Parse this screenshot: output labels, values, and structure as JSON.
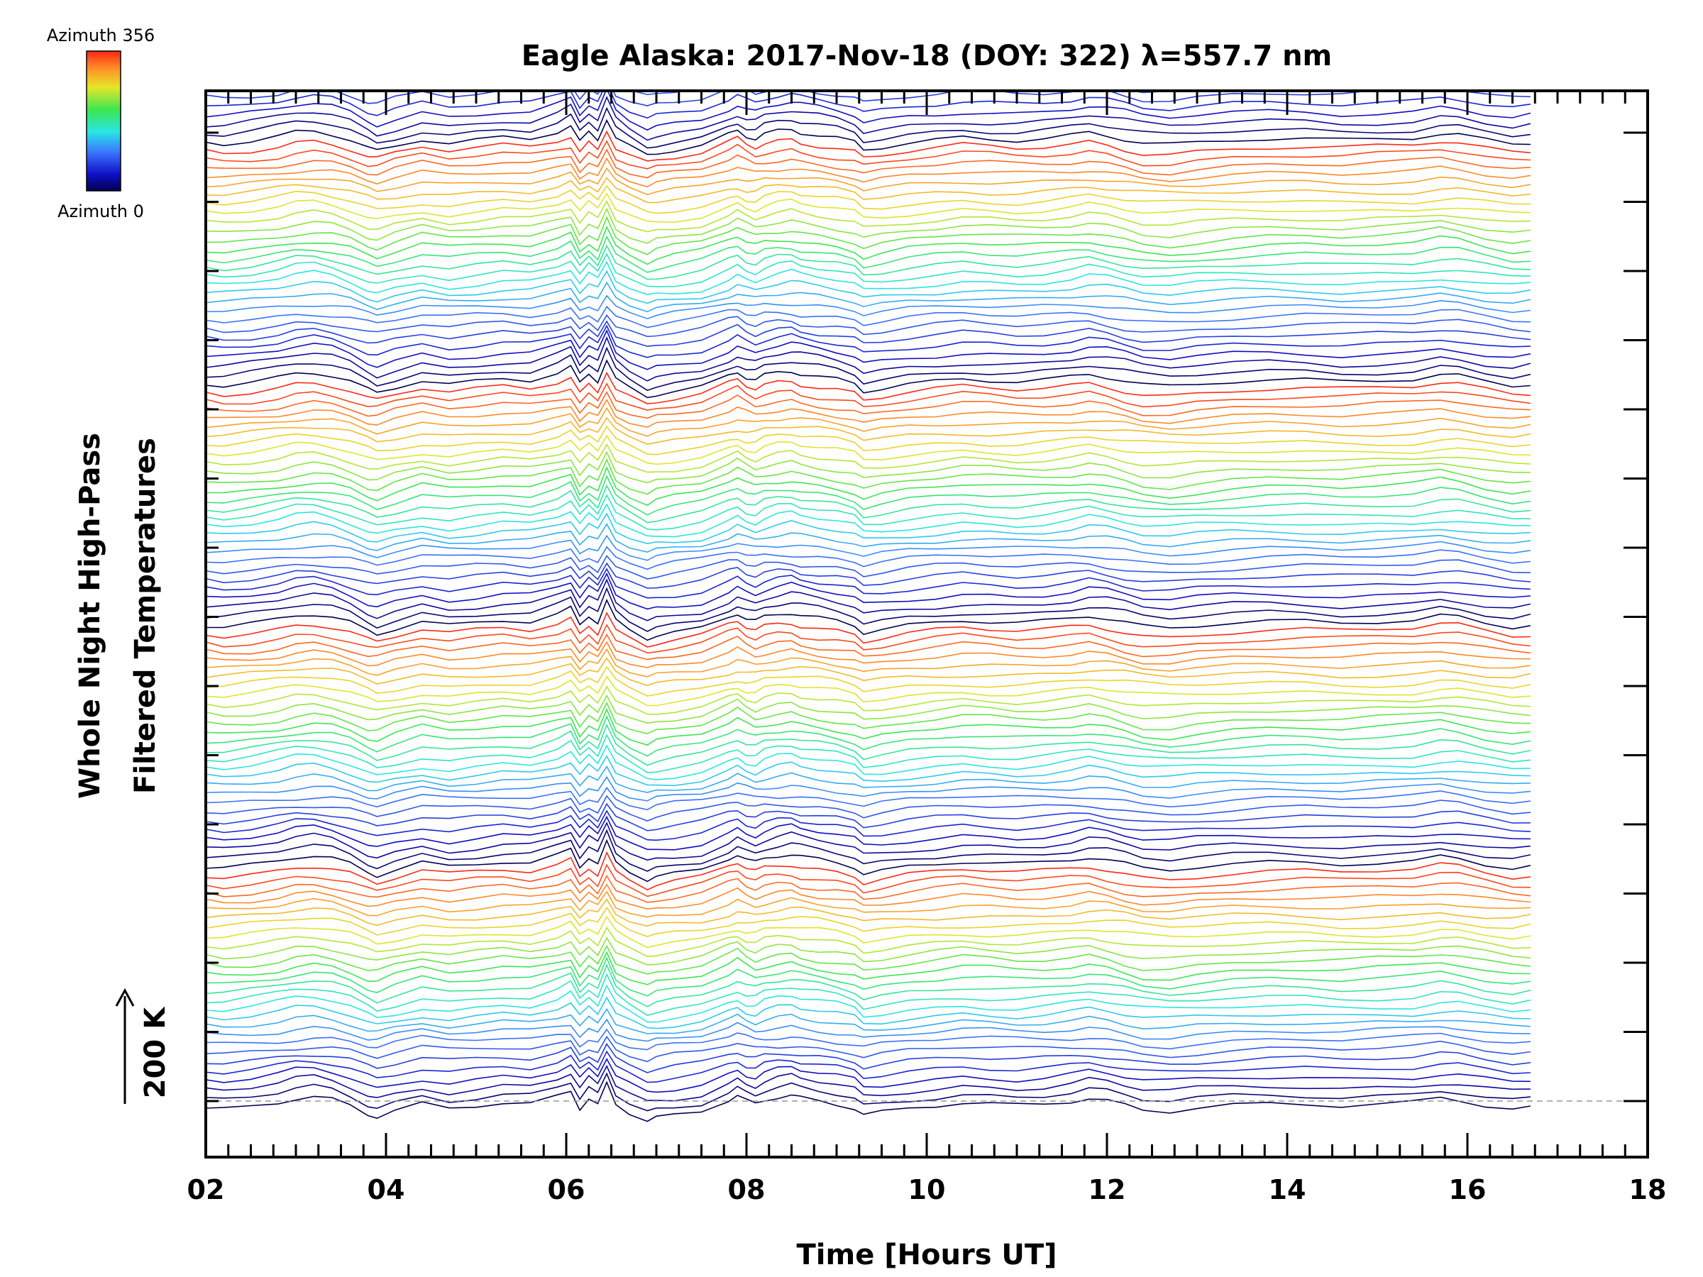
{
  "chart_data": {
    "type": "line",
    "title": "Eagle Alaska: 2017-Nov-18 (DOY: 322) λ=557.7 nm",
    "xlabel": "Time [Hours UT]",
    "ylabel_line1": "Whole Night High-Pass",
    "ylabel_line2": "Filtered Temperatures",
    "scale_label": "200 K",
    "xlim": [
      2,
      18
    ],
    "x_tick_labels": [
      "02",
      "04",
      "06",
      "08",
      "10",
      "12",
      "14",
      "16",
      "18"
    ],
    "x_ticks": [
      2,
      4,
      6,
      8,
      10,
      12,
      14,
      16,
      18
    ],
    "colorbar": {
      "top_label": "Azimuth 356",
      "bottom_label": "Azimuth 0",
      "colormap": "rainbow"
    },
    "series_count": 138,
    "line_spacing_K": 12.6,
    "baseline_x_end": 18,
    "data_x_range": [
      2,
      16.7
    ],
    "base_profile": {
      "x": [
        2.0,
        2.2,
        2.5,
        2.8,
        3.0,
        3.2,
        3.4,
        3.6,
        3.8,
        3.9,
        4.1,
        4.4,
        4.7,
        5.0,
        5.3,
        5.6,
        5.9,
        6.05,
        6.15,
        6.25,
        6.35,
        6.45,
        6.55,
        6.7,
        6.9,
        7.0,
        7.2,
        7.5,
        7.8,
        7.9,
        8.0,
        8.1,
        8.2,
        8.35,
        8.5,
        8.6,
        8.8,
        9.0,
        9.2,
        9.3,
        9.5,
        9.8,
        10.1,
        10.4,
        10.7,
        11.0,
        11.3,
        11.6,
        11.8,
        12.0,
        12.2,
        12.4,
        12.7,
        13.0,
        13.4,
        13.8,
        14.2,
        14.6,
        15.0,
        15.4,
        15.7,
        15.9,
        16.2,
        16.5,
        16.7
      ],
      "y": [
        -10,
        -12,
        -8,
        -2,
        4,
        6,
        2,
        -6,
        -18,
        -22,
        -14,
        -4,
        -10,
        -6,
        -2,
        -4,
        6,
        14,
        -10,
        4,
        -6,
        24,
        -4,
        -16,
        -28,
        -24,
        -20,
        -14,
        2,
        8,
        0,
        -4,
        2,
        6,
        8,
        4,
        0,
        -4,
        -10,
        -20,
        -16,
        -10,
        -6,
        -2,
        -4,
        -6,
        -4,
        0,
        4,
        0,
        -6,
        -12,
        -14,
        -10,
        -6,
        -4,
        -4,
        -6,
        -4,
        -2,
        4,
        2,
        -6,
        -12,
        -10
      ]
    },
    "notes": "Stacked time series, one per azimuth; each series offset vertically by a constant; colored by azimuth from 0 (dark navy) through blue, cyan, green, yellow to 356 (red)."
  }
}
